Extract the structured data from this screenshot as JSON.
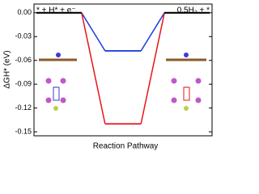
{
  "chart_data": {
    "type": "energy-diagram",
    "y_label": "ΔGH* (eV)",
    "x_label": "Reaction Pathway",
    "categories": [
      "* + H* + e⁻",
      null,
      "0.5H₂ + *"
    ],
    "series": [
      {
        "color": "#1f3fe0",
        "values": [
          0,
          -0.048,
          0
        ]
      },
      {
        "color": "#e8141b",
        "values": [
          0,
          -0.14,
          0
        ]
      }
    ],
    "level_color": "#000000",
    "ylim": [
      -0.155,
      0.011
    ],
    "yticks": [
      {
        "value": 0,
        "label": "0.00"
      },
      {
        "value": -0.03,
        "label": "-0.03"
      },
      {
        "value": -0.06,
        "label": "-0.06"
      },
      {
        "value": -0.09,
        "label": "-0.09"
      },
      {
        "value": -0.12,
        "label": "-0.12"
      },
      {
        "value": -0.15,
        "label": "-0.15"
      }
    ]
  }
}
